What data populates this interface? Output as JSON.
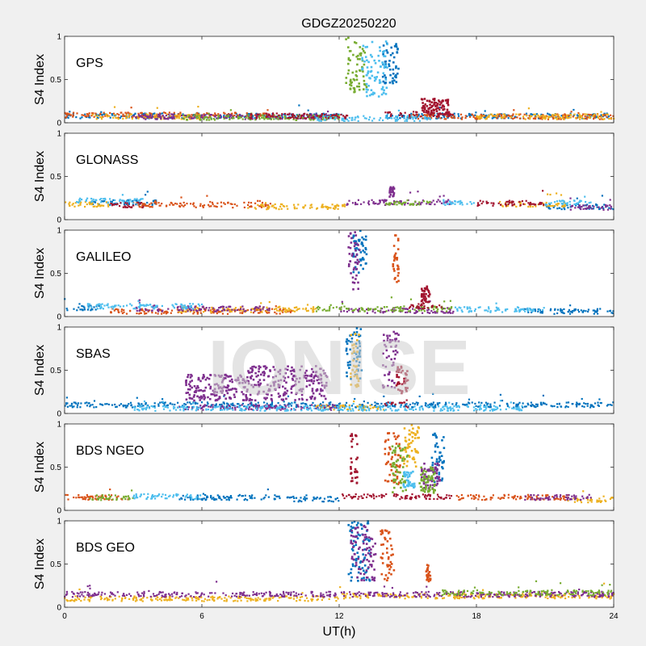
{
  "chart_data": {
    "type": "scatter",
    "title": "GDGZ20250220",
    "xlabel": "UT(h)",
    "ylabel": "S4 Index",
    "xlim": [
      0,
      24
    ],
    "ylim": [
      0,
      1
    ],
    "xticks": [
      "0",
      "6",
      "12",
      "18",
      "24"
    ],
    "yticks": [
      "0",
      "0.5",
      "1"
    ],
    "grid": false,
    "watermark": "IONISE",
    "colors": [
      "#0072BD",
      "#D95319",
      "#EDB120",
      "#7E2F8E",
      "#77AC30",
      "#4DBEEE",
      "#A2142F"
    ],
    "panels": [
      {
        "name": "GPS",
        "series": [
          {
            "color": 0,
            "segments": [
              [
                0,
                12,
                0.08
              ],
              [
                14,
                24,
                0.08
              ]
            ],
            "bursts": [
              [
                13.9,
                14.6,
                0.45,
                0.92
              ]
            ]
          },
          {
            "color": 1,
            "segments": [
              [
                0,
                9,
                0.09
              ],
              [
                15,
                24,
                0.07
              ]
            ],
            "bursts": []
          },
          {
            "color": 2,
            "segments": [
              [
                1,
                6,
                0.07
              ],
              [
                18,
                24,
                0.07
              ]
            ],
            "bursts": []
          },
          {
            "color": 3,
            "segments": [
              [
                3,
                12,
                0.07
              ]
            ],
            "bursts": []
          },
          {
            "color": 4,
            "segments": [
              [
                5,
                12,
                0.06
              ]
            ],
            "bursts": [
              [
                12.3,
                13.2,
                0.35,
                1.0
              ]
            ]
          },
          {
            "color": 5,
            "segments": [
              [
                11,
                16,
                0.05
              ]
            ],
            "bursts": [
              [
                13.0,
                14.1,
                0.3,
                0.95
              ]
            ]
          },
          {
            "color": 6,
            "segments": [
              [
                8,
                12.5,
                0.08
              ],
              [
                14,
                17,
                0.1
              ]
            ],
            "bursts": [
              [
                15.6,
                16.8,
                0.1,
                0.28
              ]
            ]
          }
        ]
      },
      {
        "name": "GLONASS",
        "series": [
          {
            "color": 0,
            "segments": [
              [
                1,
                4,
                0.2
              ],
              [
                21,
                24,
                0.15
              ]
            ],
            "bursts": []
          },
          {
            "color": 1,
            "segments": [
              [
                3,
                9,
                0.17
              ]
            ],
            "bursts": []
          },
          {
            "color": 2,
            "segments": [
              [
                0,
                2,
                0.18
              ],
              [
                8,
                12.3,
                0.15
              ],
              [
                19,
                22,
                0.18
              ]
            ],
            "bursts": []
          },
          {
            "color": 3,
            "segments": [
              [
                12.3,
                17,
                0.2
              ],
              [
                22,
                24,
                0.14
              ]
            ],
            "bursts": [
              [
                14.2,
                14.4,
                0.25,
                0.4
              ]
            ]
          },
          {
            "color": 4,
            "segments": [
              [
                14,
                16,
                0.2
              ]
            ],
            "bursts": []
          },
          {
            "color": 5,
            "segments": [
              [
                0.5,
                3.5,
                0.22
              ],
              [
                16.5,
                18,
                0.2
              ],
              [
                21,
                23,
                0.2
              ]
            ],
            "bursts": []
          },
          {
            "color": 6,
            "segments": [
              [
                2,
                3.5,
                0.17
              ],
              [
                18,
                21,
                0.19
              ]
            ],
            "bursts": []
          }
        ]
      },
      {
        "name": "GALILEO",
        "series": [
          {
            "color": 0,
            "segments": [
              [
                0,
                1.5,
                0.1
              ],
              [
                20,
                24,
                0.06
              ]
            ],
            "bursts": [
              [
                12.6,
                13.2,
                0.5,
                1.0
              ]
            ]
          },
          {
            "color": 1,
            "segments": [
              [
                2,
                10,
                0.06
              ]
            ],
            "bursts": [
              [
                14.3,
                14.6,
                0.4,
                0.95
              ]
            ]
          },
          {
            "color": 2,
            "segments": [
              [
                5,
                11,
                0.08
              ]
            ],
            "bursts": []
          },
          {
            "color": 3,
            "segments": [
              [
                3,
                9,
                0.09
              ],
              [
                12,
                17,
                0.07
              ]
            ],
            "bursts": [
              [
                12.4,
                12.9,
                0.3,
                1.0
              ]
            ]
          },
          {
            "color": 4,
            "segments": [
              [
                11,
                17,
                0.09
              ]
            ],
            "bursts": []
          },
          {
            "color": 5,
            "segments": [
              [
                1,
                6,
                0.12
              ],
              [
                17,
                21,
                0.08
              ]
            ],
            "bursts": []
          },
          {
            "color": 6,
            "segments": [
              [
                15,
                16.5,
                0.12
              ]
            ],
            "bursts": [
              [
                15.6,
                16.0,
                0.15,
                0.35
              ]
            ]
          }
        ]
      },
      {
        "name": "SBAS",
        "series": [
          {
            "color": 0,
            "segments": [
              [
                0,
                24,
                0.1
              ]
            ],
            "bursts": [
              [
                12.3,
                13.0,
                0.4,
                1.0
              ]
            ]
          },
          {
            "color": 2,
            "segments": [
              [
                11,
                14,
                0.07
              ]
            ],
            "bursts": [
              [
                12.5,
                12.9,
                0.3,
                0.95
              ]
            ]
          },
          {
            "color": 3,
            "segments": [
              [
                5,
                12,
                0.07
              ]
            ],
            "bursts": [
              [
                5.3,
                8.0,
                0.15,
                0.45
              ],
              [
                8.0,
                11.5,
                0.15,
                0.55
              ],
              [
                13.9,
                14.6,
                0.3,
                0.95
              ]
            ]
          },
          {
            "color": 5,
            "segments": [
              [
                3,
                20,
                0.06
              ]
            ],
            "bursts": []
          },
          {
            "color": 6,
            "segments": [
              [
                14,
                15,
                0.1
              ]
            ],
            "bursts": [
              [
                14.5,
                15.0,
                0.2,
                0.55
              ]
            ]
          }
        ]
      },
      {
        "name": "BDS NGEO",
        "series": [
          {
            "color": 0,
            "segments": [
              [
                5,
                10,
                0.15
              ],
              [
                10,
                12,
                0.13
              ]
            ],
            "bursts": [
              [
                16.0,
                16.6,
                0.3,
                0.9
              ]
            ]
          },
          {
            "color": 1,
            "segments": [
              [
                0,
                3,
                0.15
              ],
              [
                17,
                22,
                0.15
              ]
            ],
            "bursts": [
              [
                14.0,
                14.7,
                0.3,
                0.9
              ]
            ]
          },
          {
            "color": 2,
            "segments": [
              [
                22,
                24,
                0.12
              ]
            ],
            "bursts": [
              [
                14.8,
                15.5,
                0.5,
                1.0
              ]
            ]
          },
          {
            "color": 3,
            "segments": [
              [
                20,
                23,
                0.15
              ]
            ],
            "bursts": [
              [
                15.6,
                16.4,
                0.25,
                0.55
              ]
            ]
          },
          {
            "color": 4,
            "segments": [
              [
                1,
                3,
                0.15
              ]
            ],
            "bursts": [
              [
                14.3,
                15.0,
                0.2,
                0.75
              ],
              [
                15.5,
                16.2,
                0.2,
                0.5
              ]
            ]
          },
          {
            "color": 5,
            "segments": [
              [
                3,
                6,
                0.16
              ]
            ],
            "bursts": [
              [
                14.8,
                15.3,
                0.25,
                0.45
              ]
            ]
          },
          {
            "color": 6,
            "segments": [
              [
                12,
                17,
                0.16
              ]
            ],
            "bursts": [
              [
                12.5,
                12.8,
                0.3,
                0.9
              ]
            ]
          }
        ]
      },
      {
        "name": "BDS GEO",
        "series": [
          {
            "color": 0,
            "segments": [],
            "bursts": [
              [
                12.4,
                13.4,
                0.3,
                1.0
              ]
            ]
          },
          {
            "color": 1,
            "segments": [],
            "bursts": [
              [
                13.8,
                14.4,
                0.3,
                0.9
              ],
              [
                15.8,
                16.0,
                0.3,
                0.5
              ]
            ]
          },
          {
            "color": 2,
            "segments": [
              [
                0,
                12,
                0.1
              ],
              [
                12,
                24,
                0.13
              ]
            ],
            "bursts": []
          },
          {
            "color": 3,
            "segments": [
              [
                0,
                24,
                0.15
              ]
            ],
            "bursts": [
              [
                12.5,
                13.6,
                0.3,
                0.95
              ]
            ]
          },
          {
            "color": 4,
            "segments": [
              [
                16.5,
                24,
                0.17
              ]
            ],
            "bursts": []
          }
        ]
      }
    ]
  }
}
